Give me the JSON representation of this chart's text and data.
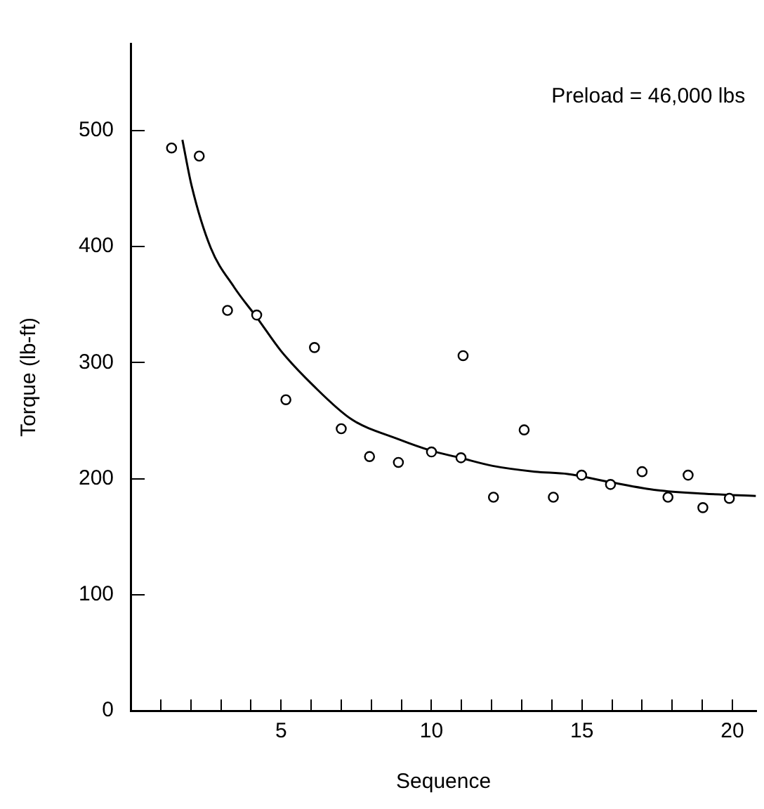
{
  "chart_data": {
    "type": "scatter",
    "xlabel": "Sequence",
    "ylabel": "Torque (lb-ft)",
    "annotations": [
      "Preload = 46,000 lbs"
    ],
    "xlim": [
      0,
      20.8
    ],
    "xticks": [
      {
        "value": 1,
        "label": null
      },
      {
        "value": 2,
        "label": null
      },
      {
        "value": 3,
        "label": null
      },
      {
        "value": 4,
        "label": null
      },
      5,
      {
        "value": 6,
        "label": null
      },
      {
        "value": 7,
        "label": null
      },
      {
        "value": 8,
        "label": null
      },
      {
        "value": 9,
        "label": null
      },
      10,
      {
        "value": 11,
        "label": null
      },
      {
        "value": 12,
        "label": null
      },
      {
        "value": 13,
        "label": null
      },
      {
        "value": 14,
        "label": null
      },
      15,
      {
        "value": 16,
        "label": null
      },
      {
        "value": 17,
        "label": null
      },
      {
        "value": 18,
        "label": null
      },
      {
        "value": 19,
        "label": null
      },
      20
    ],
    "ylim": [
      0,
      575
    ],
    "yticks": [
      0,
      100,
      200,
      300,
      400,
      500
    ],
    "grid": false,
    "legend": false,
    "marker": "circle",
    "series": [
      {
        "color": "#000000",
        "x": [
          1.36,
          2.28,
          3.22,
          4.19,
          5.16,
          6.11,
          7.0,
          7.94,
          8.9,
          10.0,
          10.98,
          11.05,
          12.06,
          13.08,
          14.05,
          14.99,
          15.95,
          17.0,
          17.86,
          18.53,
          19.02,
          19.9
        ],
        "values": [
          485,
          478,
          345,
          341,
          268,
          313,
          243,
          219,
          214,
          223,
          218,
          306,
          184,
          242,
          184,
          203,
          195,
          206,
          184,
          203,
          175,
          183
        ]
      },
      {
        "type": "line",
        "color": "#000000",
        "marker": "none",
        "line_style": "solid",
        "x": [
          1.72,
          2.03,
          2.66,
          3.44,
          4.22,
          5.0,
          6.08,
          7.35,
          8.9,
          10.0,
          10.94,
          12.03,
          13.44,
          14.53,
          15.94,
          17.5,
          19.06,
          20.78
        ],
        "values": [
          492,
          452,
          399,
          365,
          338,
          310,
          280,
          251,
          234,
          224,
          218,
          211,
          206,
          204,
          197,
          190,
          187,
          185
        ]
      }
    ]
  }
}
